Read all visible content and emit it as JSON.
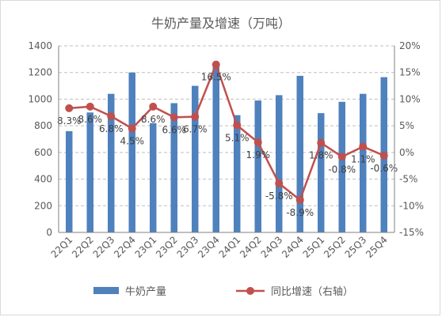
{
  "chart_data": {
    "type": "bar",
    "title": "牛奶产量及增速（万吨）",
    "categories": [
      "22Q1",
      "22Q2",
      "22Q3",
      "22Q4",
      "23Q1",
      "23Q2",
      "23Q3",
      "23Q4",
      "24Q1",
      "24Q2",
      "24Q3",
      "24Q4",
      "25Q1",
      "25Q2",
      "25Q3",
      "25Q4"
    ],
    "ylim": [
      0,
      1400
    ],
    "yticks": [
      0,
      200,
      400,
      600,
      800,
      1000,
      1200,
      1400
    ],
    "y2lim": [
      -15,
      20
    ],
    "y2ticks": [
      "-15%",
      "-10%",
      "-5%",
      "0%",
      "5%",
      "10%",
      "15%",
      "20%"
    ],
    "grid": true,
    "legend_position": "bottom",
    "series": [
      {
        "name": "牛奶产量",
        "type": "bar",
        "axis": "left",
        "color": "#4f81bd",
        "values": [
          760,
          900,
          1040,
          1200,
          820,
          970,
          1100,
          1250,
          880,
          990,
          1030,
          1175,
          895,
          980,
          1040,
          1165
        ]
      },
      {
        "name": "同比增速（右轴）",
        "type": "line",
        "axis": "right",
        "color": "#c0504d",
        "values": [
          8.3,
          8.6,
          6.8,
          4.5,
          8.6,
          6.6,
          6.7,
          16.5,
          5.1,
          1.9,
          -5.8,
          -8.9,
          1.8,
          -0.8,
          1.1,
          -0.6
        ],
        "labels": [
          "8.3%",
          "8.6%",
          "6.8%",
          "4.5%",
          "8.6%",
          "6.6%",
          "6.7%",
          "16.5%",
          "5.1%",
          "1.9%",
          "-5.8%",
          "-8.9%",
          "1.8%",
          "-0.8%",
          "1.1%",
          "-0.6%"
        ]
      }
    ]
  }
}
